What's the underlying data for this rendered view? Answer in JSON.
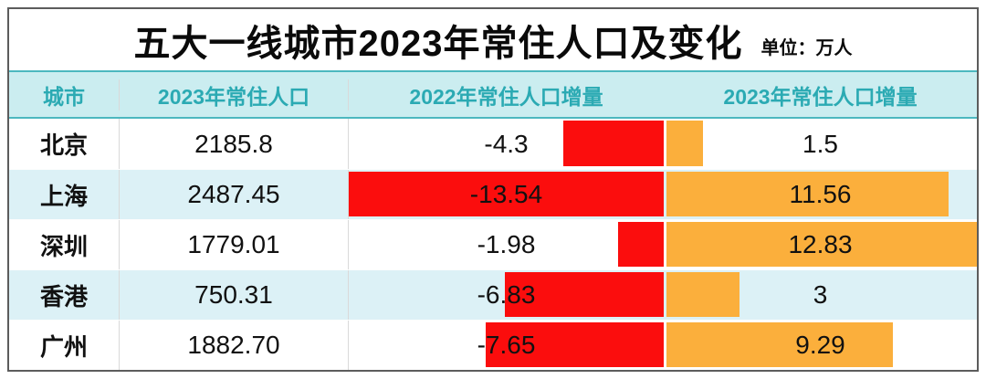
{
  "title": {
    "text": "五大一线城市2023年常住人口及变化",
    "unit_label": "单位：万人"
  },
  "colors": {
    "negative_bar": "#FB0D0D",
    "positive_bar": "#FBAF3C",
    "header_bg": "#CBEDF0",
    "header_text": "#2BAAB3",
    "teal_border": "#4CB8BF",
    "alt_row_bg": "#DCF1F6",
    "grid_line": "#D9D9D9"
  },
  "table": {
    "columns": [
      {
        "label": "城市"
      },
      {
        "label": "2023年常住人口"
      },
      {
        "label": "2022年常住人口增量"
      },
      {
        "label": "2023年常住人口增量"
      }
    ],
    "rows": [
      {
        "city": "北京",
        "pop_2023": "2185.8",
        "delta_2022": "-4.3",
        "delta_2023": "1.5"
      },
      {
        "city": "上海",
        "pop_2023": "2487.45",
        "delta_2022": "-13.54",
        "delta_2023": "11.56"
      },
      {
        "city": "深圳",
        "pop_2023": "1779.01",
        "delta_2022": "-1.98",
        "delta_2023": "12.83"
      },
      {
        "city": "香港",
        "pop_2023": "750.31",
        "delta_2022": "-6.83",
        "delta_2023": "3"
      },
      {
        "city": "广州",
        "pop_2023": "1882.70",
        "delta_2022": "-7.65",
        "delta_2023": "9.29"
      }
    ]
  },
  "chart_data": {
    "type": "table",
    "title": "五大一线城市2023年常住人口及变化",
    "unit": "万人",
    "columns": [
      "城市",
      "2023年常住人口",
      "2022年常住人口增量",
      "2023年常住人口增量"
    ],
    "rows": [
      [
        "北京",
        2185.8,
        -4.3,
        1.5
      ],
      [
        "上海",
        2487.45,
        -13.54,
        11.56
      ],
      [
        "深圳",
        1779.01,
        -1.98,
        12.83
      ],
      [
        "香港",
        750.31,
        -6.83,
        3
      ],
      [
        "广州",
        1882.7,
        -7.65,
        9.29
      ]
    ],
    "bar_columns": {
      "delta_2022": {
        "color": "#FB0D0D",
        "align": "right",
        "scale_max": 13.54
      },
      "delta_2023": {
        "color": "#FBAF3C",
        "align": "left",
        "scale_max": 12.83
      }
    },
    "layout": {
      "alternating_row_shading": true,
      "bars_embedded_in_cells": true
    }
  }
}
